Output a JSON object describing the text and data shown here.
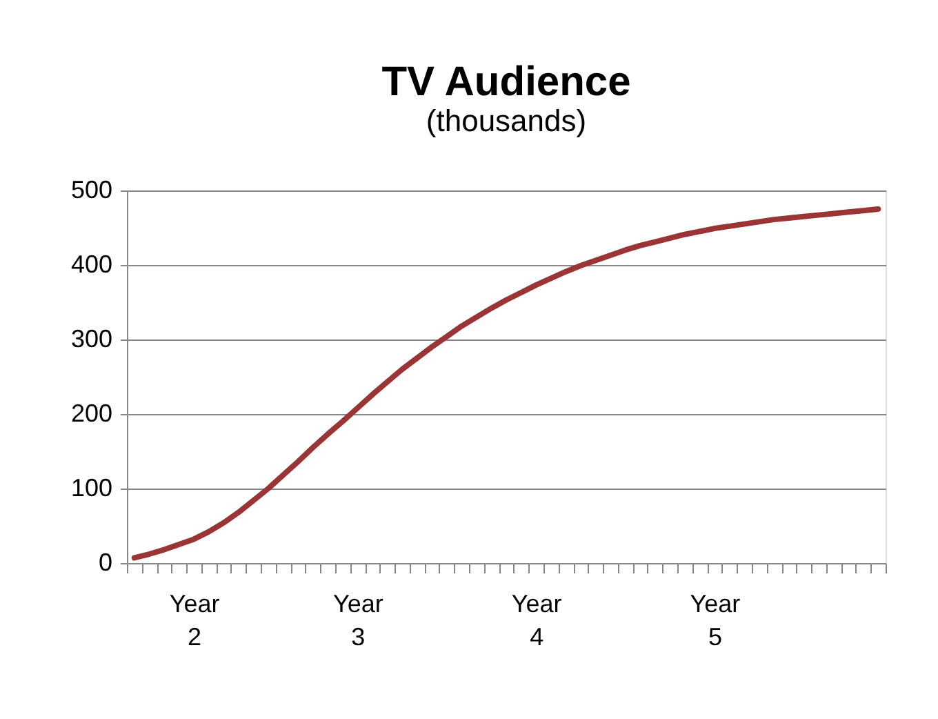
{
  "chart_data": {
    "type": "line",
    "title": "TV Audience",
    "subtitle": "(thousands)",
    "categories": [
      null,
      null,
      null,
      null,
      "Year 2",
      null,
      null,
      null,
      null,
      null,
      null,
      null,
      null,
      null,
      null,
      "Year 3",
      null,
      null,
      null,
      null,
      null,
      null,
      null,
      null,
      null,
      null,
      null,
      "Year 4",
      null,
      null,
      null,
      null,
      null,
      null,
      null,
      null,
      null,
      null,
      null,
      "Year 5",
      null,
      null,
      null,
      null,
      null,
      null,
      null,
      null,
      null,
      null,
      null
    ],
    "series": [
      {
        "color": "#9b3434",
        "values": [
          7,
          12,
          18,
          25,
          32,
          42,
          54,
          68,
          84,
          100,
          118,
          136,
          155,
          173,
          190,
          208,
          226,
          243,
          260,
          275,
          290,
          304,
          318,
          330,
          342,
          353,
          363,
          373,
          382,
          391,
          399,
          406,
          413,
          420,
          426,
          431,
          436,
          441,
          445,
          449,
          452,
          455,
          458,
          461,
          463,
          465,
          467,
          469,
          471,
          473,
          475
        ]
      }
    ],
    "ylim": [
      0,
      500
    ],
    "yticks": [
      0,
      100,
      200,
      300,
      400,
      500
    ],
    "grid": "y",
    "marker": "none",
    "line_style": "solid"
  }
}
